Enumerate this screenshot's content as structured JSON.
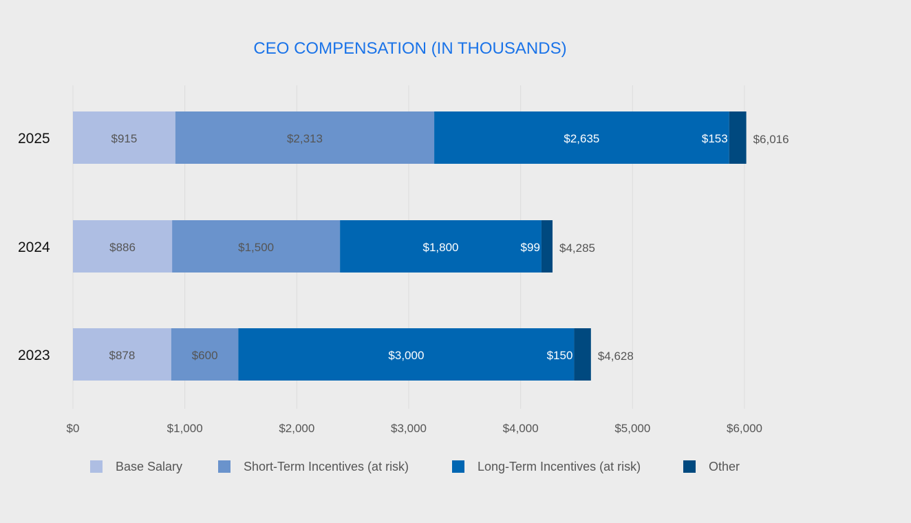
{
  "chart_data": {
    "type": "bar",
    "orientation": "horizontal",
    "stacked": true,
    "title": "CEO COMPENSATION (IN THOUSANDS)",
    "categories": [
      "2025",
      "2024",
      "2023"
    ],
    "series": [
      {
        "name": "Base Salary",
        "color": "#aebee3",
        "label_color": "#555555",
        "values": [
          915,
          886,
          878
        ],
        "labels": [
          "$915",
          "$886",
          "$878"
        ]
      },
      {
        "name": "Short-Term Incentives (at risk)",
        "color": "#6a93cc",
        "label_color": "#555555",
        "values": [
          2313,
          1500,
          600
        ],
        "labels": [
          "$2,313",
          "$1,500",
          "$600"
        ]
      },
      {
        "name": "Long-Term Incentives (at risk)",
        "color": "#0066b2",
        "label_color": "#ffffff",
        "values": [
          2635,
          1800,
          3000
        ],
        "labels": [
          "$2,635",
          "$1,800",
          "$3,000"
        ]
      },
      {
        "name": "Other",
        "color": "#00497f",
        "label_color": "#ffffff",
        "values": [
          153,
          99,
          150
        ],
        "labels": [
          "$153",
          "$99",
          "$150"
        ]
      }
    ],
    "totals": [
      "$6,016",
      "$4,285",
      "$4,628"
    ],
    "xlim": [
      0,
      6000
    ],
    "xticks": [
      0,
      1000,
      2000,
      3000,
      4000,
      5000,
      6000
    ],
    "xtick_labels": [
      "$0",
      "$1,000",
      "$2,000",
      "$3,000",
      "$4,000",
      "$5,000",
      "$6,000"
    ],
    "grid": true,
    "legend_position": "bottom",
    "title_color": "#1a73e8",
    "grid_color": "#dcdcdc"
  }
}
